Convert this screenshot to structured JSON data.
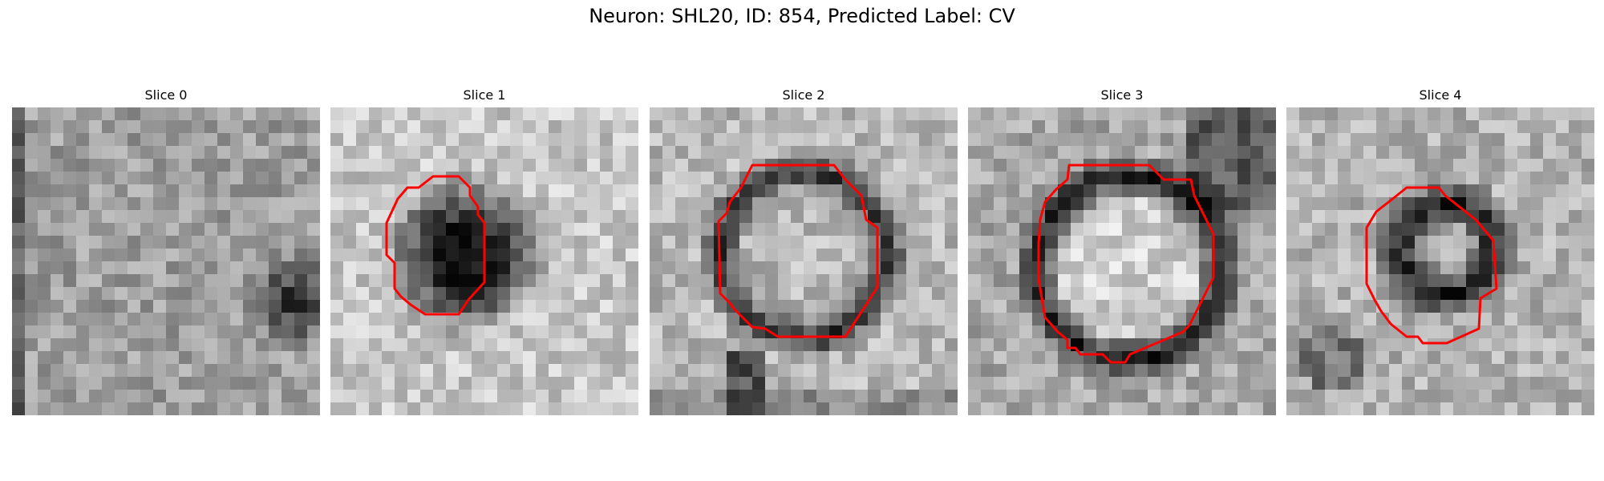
{
  "title": "Neuron: SHL20, ID: 854, Predicted Label: CV",
  "panels": [
    {
      "label": "Slice 0",
      "contour": false
    },
    {
      "label": "Slice 1",
      "contour": true
    },
    {
      "label": "Slice 2",
      "contour": true
    },
    {
      "label": "Slice 3",
      "contour": true
    },
    {
      "label": "Slice 4",
      "contour": true
    }
  ],
  "colors": {
    "contour": "#ff0000",
    "colormap": "grayscale"
  }
}
